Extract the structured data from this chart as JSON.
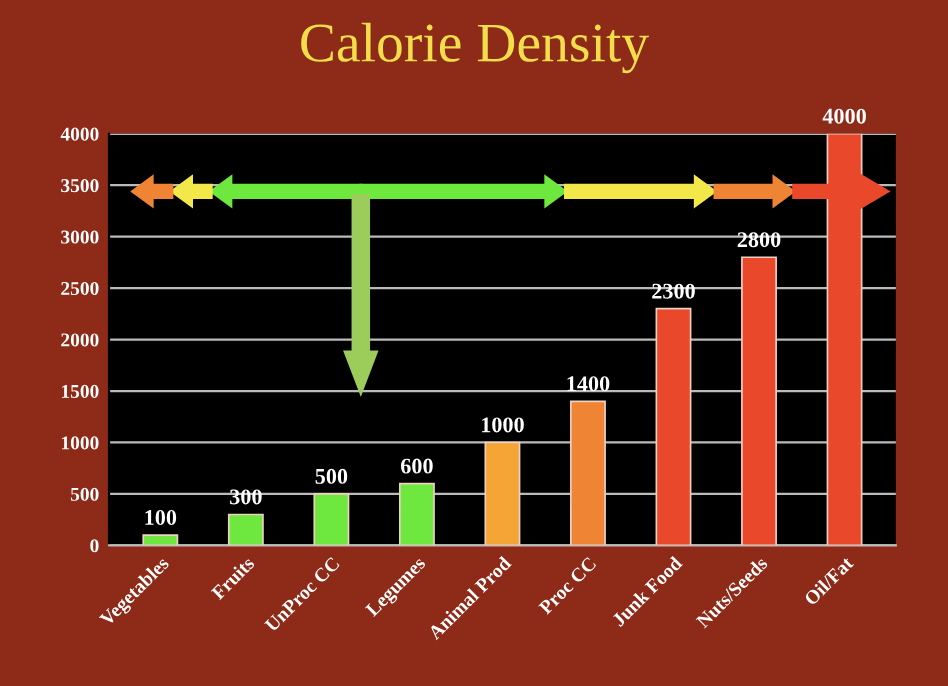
{
  "chart_data": {
    "type": "bar",
    "title": "Calorie Density",
    "categories": [
      "Vegetables",
      "Fruits",
      "UnProc CC",
      "Legumes",
      "Animal Prod",
      "Proc CC",
      "Junk Food",
      "Nuts/Seeds",
      "Oil/Fat"
    ],
    "values": [
      100,
      300,
      500,
      600,
      1000,
      1400,
      2300,
      2800,
      4000
    ],
    "colors": [
      "#6ee83e",
      "#6ee83e",
      "#6ee83e",
      "#6ee83e",
      "#f4a535",
      "#ee8434",
      "#e9482b",
      "#e9482b",
      "#e9482b"
    ],
    "ylim": [
      0,
      4000
    ],
    "yticks": [
      0,
      500,
      1000,
      1500,
      2000,
      2500,
      3000,
      3500,
      4000
    ],
    "grid": "y",
    "data_labels": true
  }
}
